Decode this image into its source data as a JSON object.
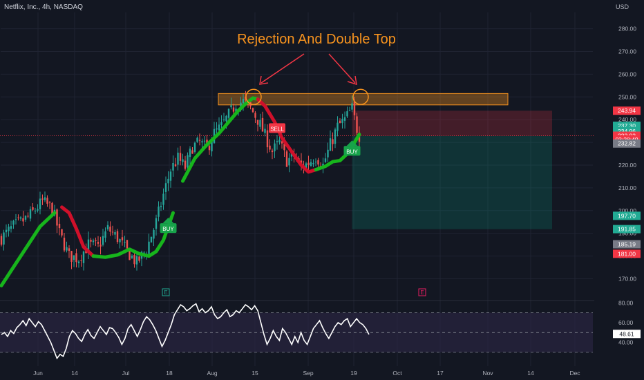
{
  "header": {
    "title": "Netflix, Inc., 4h, NASDAQ",
    "currency": "USD"
  },
  "annotation": {
    "text": "Rejection And Double Top"
  },
  "colors": {
    "background": "#131722",
    "up": "#26a69a",
    "down": "#ef5350",
    "trend_up": "#17b51c",
    "trend_down": "#d0102a",
    "accent": "#f7931e",
    "rsi_line": "#ffffff",
    "rsi_band": "#2a2540"
  },
  "chart_data": [
    {
      "type": "candlestick",
      "title": "Netflix, Inc., 4h, NASDAQ",
      "ylabel": "USD",
      "ylim": [
        163,
        286
      ],
      "y_ticks": [
        170,
        180,
        190,
        200,
        210,
        220,
        230,
        240,
        250,
        260,
        270,
        280
      ],
      "x_ticks": [
        "Jun",
        "14",
        "Jul",
        "18",
        "Aug",
        "15",
        "Sep",
        "19",
        "Oct",
        "17",
        "Nov",
        "14",
        "Dec"
      ],
      "trendline": [
        {
          "t": 0,
          "v": 167
        },
        {
          "t": 8,
          "v": 180
        },
        {
          "t": 16,
          "v": 193
        },
        {
          "t": 22,
          "v": 199
        },
        {
          "t": 25,
          "v": 201.5
        },
        {
          "t": 28,
          "v": 199
        },
        {
          "t": 31,
          "v": 192
        },
        {
          "t": 34,
          "v": 184
        },
        {
          "t": 38,
          "v": 180
        },
        {
          "t": 43,
          "v": 179.5
        },
        {
          "t": 48,
          "v": 180.5
        },
        {
          "t": 53,
          "v": 183
        },
        {
          "t": 57,
          "v": 181
        },
        {
          "t": 61,
          "v": 180
        },
        {
          "t": 64,
          "v": 182
        },
        {
          "t": 67,
          "v": 187
        },
        {
          "t": 71,
          "v": 199
        },
        {
          "t": 75,
          "v": 213
        },
        {
          "t": 80,
          "v": 223
        },
        {
          "t": 85,
          "v": 229
        },
        {
          "t": 90,
          "v": 234
        },
        {
          "t": 94,
          "v": 239
        },
        {
          "t": 98,
          "v": 244
        },
        {
          "t": 101,
          "v": 247
        },
        {
          "t": 104,
          "v": 249.5
        },
        {
          "t": 106,
          "v": 249
        },
        {
          "t": 109,
          "v": 246
        },
        {
          "t": 113,
          "v": 239
        },
        {
          "t": 116,
          "v": 232
        },
        {
          "t": 120,
          "v": 226
        },
        {
          "t": 124,
          "v": 220
        },
        {
          "t": 127,
          "v": 217
        },
        {
          "t": 130,
          "v": 218
        },
        {
          "t": 134,
          "v": 219.5
        },
        {
          "t": 137,
          "v": 221.5
        },
        {
          "t": 140,
          "v": 222
        },
        {
          "t": 143,
          "v": 225
        },
        {
          "t": 146,
          "v": 230
        },
        {
          "t": 148,
          "v": 233.5
        }
      ],
      "trend_segments": [
        {
          "from": 0,
          "to": 24,
          "dir": "up"
        },
        {
          "from": 24,
          "to": 38,
          "dir": "down"
        },
        {
          "from": 38,
          "to": 72,
          "dir": "up"
        },
        {
          "from": 72,
          "to": 106,
          "dir": "up"
        },
        {
          "from": 106,
          "to": 130,
          "dir": "down"
        },
        {
          "from": 130,
          "to": 148,
          "dir": "up"
        }
      ],
      "candle_anchors": [
        {
          "t": 0,
          "v": 188
        },
        {
          "t": 5,
          "v": 193
        },
        {
          "t": 11,
          "v": 197
        },
        {
          "t": 17,
          "v": 204
        },
        {
          "t": 21,
          "v": 201
        },
        {
          "t": 24,
          "v": 190
        },
        {
          "t": 28,
          "v": 180
        },
        {
          "t": 32,
          "v": 179
        },
        {
          "t": 36,
          "v": 185
        },
        {
          "t": 40,
          "v": 184
        },
        {
          "t": 44,
          "v": 192
        },
        {
          "t": 48,
          "v": 188
        },
        {
          "t": 52,
          "v": 182
        },
        {
          "t": 56,
          "v": 177
        },
        {
          "t": 60,
          "v": 183
        },
        {
          "t": 64,
          "v": 195
        },
        {
          "t": 67,
          "v": 207
        },
        {
          "t": 70,
          "v": 218
        },
        {
          "t": 73,
          "v": 223
        },
        {
          "t": 76,
          "v": 219
        },
        {
          "t": 79,
          "v": 228
        },
        {
          "t": 82,
          "v": 230
        },
        {
          "t": 85,
          "v": 227
        },
        {
          "t": 88,
          "v": 234
        },
        {
          "t": 91,
          "v": 237
        },
        {
          "t": 94,
          "v": 242
        },
        {
          "t": 97,
          "v": 247
        },
        {
          "t": 100,
          "v": 248
        },
        {
          "t": 103,
          "v": 245
        },
        {
          "t": 106,
          "v": 240
        },
        {
          "t": 109,
          "v": 233
        },
        {
          "t": 112,
          "v": 226
        },
        {
          "t": 115,
          "v": 230
        },
        {
          "t": 118,
          "v": 222
        },
        {
          "t": 121,
          "v": 224
        },
        {
          "t": 124,
          "v": 219
        },
        {
          "t": 127,
          "v": 221
        },
        {
          "t": 130,
          "v": 224
        },
        {
          "t": 133,
          "v": 220
        },
        {
          "t": 136,
          "v": 229
        },
        {
          "t": 139,
          "v": 237
        },
        {
          "t": 142,
          "v": 240
        },
        {
          "t": 145,
          "v": 245
        },
        {
          "t": 147,
          "v": 236
        },
        {
          "t": 148,
          "v": 233
        }
      ],
      "resistance_zone": [
        246.5,
        251.5
      ],
      "short_position": {
        "entry": 232.82,
        "stop": 243.94,
        "target": 191.85
      },
      "signals": [
        {
          "label": "BUY",
          "t": 69,
          "v": 192
        },
        {
          "label": "SELL",
          "t": 114,
          "v": 236
        },
        {
          "label": "BUY",
          "t": 145,
          "v": 226
        }
      ],
      "price_labels": [
        {
          "text": "243.94",
          "v": 243.94,
          "color": "#f23645"
        },
        {
          "text": "237.30",
          "v": 237.3,
          "color": "#22ab94"
        },
        {
          "text": "234.96",
          "v": 234.96,
          "color": "#22ab94"
        },
        {
          "text": "232.93",
          "v": 232.93,
          "color": "#f23645"
        },
        {
          "text": "03:28:49",
          "v": 231.3,
          "color": "#f23645"
        },
        {
          "text": "232.82",
          "v": 229.5,
          "color": "#787b86"
        },
        {
          "text": "197.70",
          "v": 197.7,
          "color": "#22ab94"
        },
        {
          "text": "191.85",
          "v": 191.85,
          "color": "#22ab94"
        },
        {
          "text": "185.19",
          "v": 185.19,
          "color": "#787b86"
        },
        {
          "text": "181.00",
          "v": 181.0,
          "color": "#f23645"
        }
      ],
      "earnings_markers": [
        {
          "label": "E",
          "t": 68
        },
        {
          "label": "E",
          "t": 174
        }
      ]
    },
    {
      "type": "line",
      "title": "",
      "ylim": [
        22,
        85
      ],
      "y_ticks": [
        40,
        60,
        80
      ],
      "band": [
        30,
        70
      ],
      "current": {
        "text": "48.61",
        "v": 48.61
      },
      "series": [
        {
          "values": [
            48,
            50,
            46,
            52,
            49,
            55,
            58,
            62,
            57,
            64,
            60,
            56,
            61,
            58,
            52,
            46,
            40,
            32,
            24,
            28,
            26,
            34,
            46,
            52,
            49,
            44,
            41,
            48,
            53,
            47,
            44,
            50,
            56,
            52,
            48,
            55,
            54,
            50,
            45,
            38,
            44,
            54,
            58,
            52,
            46,
            53,
            61,
            66,
            63,
            58,
            52,
            44,
            36,
            42,
            50,
            58,
            68,
            73,
            78,
            76,
            72,
            74,
            77,
            79,
            71,
            74,
            70,
            72,
            76,
            68,
            64,
            66,
            70,
            73,
            66,
            68,
            72,
            70,
            74,
            78,
            76,
            73,
            77,
            72,
            60,
            48,
            38,
            44,
            52,
            46,
            42,
            54,
            50,
            44,
            38,
            46,
            40,
            50,
            42,
            38,
            46,
            54,
            58,
            62,
            55,
            49,
            44,
            50,
            56,
            60,
            58,
            62,
            64,
            56,
            60,
            64,
            60,
            58,
            54,
            48
          ]
        }
      ]
    }
  ]
}
